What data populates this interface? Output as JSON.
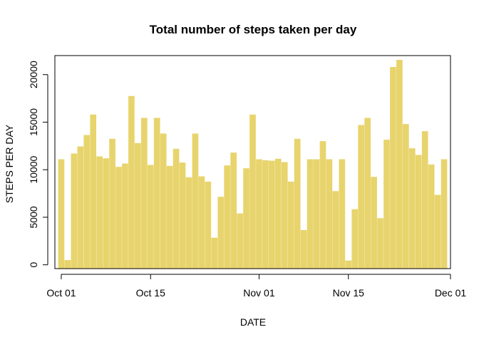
{
  "chart_data": {
    "type": "bar",
    "title": "Total number of steps taken per day",
    "xlabel": "DATE",
    "ylabel": "STEPS PER DAY",
    "bar_color": "#E8D46D",
    "ylim": [
      -400,
      22000
    ],
    "xlim": [
      "2012-09-30",
      "2012-12-01"
    ],
    "x_ticks": [
      {
        "date": "2012-10-01",
        "label": "Oct 01"
      },
      {
        "date": "2012-10-15",
        "label": "Oct 15"
      },
      {
        "date": "2012-11-01",
        "label": "Nov 01"
      },
      {
        "date": "2012-11-15",
        "label": "Nov 15"
      },
      {
        "date": "2012-12-01",
        "label": "Dec 01"
      }
    ],
    "y_ticks": [
      0,
      5000,
      10000,
      15000,
      20000
    ],
    "x": [
      "2012-10-01",
      "2012-10-02",
      "2012-10-03",
      "2012-10-04",
      "2012-10-05",
      "2012-10-06",
      "2012-10-07",
      "2012-10-08",
      "2012-10-09",
      "2012-10-10",
      "2012-10-11",
      "2012-10-12",
      "2012-10-13",
      "2012-10-14",
      "2012-10-15",
      "2012-10-16",
      "2012-10-17",
      "2012-10-18",
      "2012-10-19",
      "2012-10-20",
      "2012-10-21",
      "2012-10-22",
      "2012-10-23",
      "2012-10-24",
      "2012-10-25",
      "2012-10-26",
      "2012-10-27",
      "2012-10-28",
      "2012-10-29",
      "2012-10-30",
      "2012-10-31",
      "2012-11-01",
      "2012-11-02",
      "2012-11-03",
      "2012-11-04",
      "2012-11-05",
      "2012-11-06",
      "2012-11-07",
      "2012-11-08",
      "2012-11-09",
      "2012-11-10",
      "2012-11-11",
      "2012-11-12",
      "2012-11-13",
      "2012-11-14",
      "2012-11-15",
      "2012-11-16",
      "2012-11-17",
      "2012-11-18",
      "2012-11-19",
      "2012-11-20",
      "2012-11-21",
      "2012-11-22",
      "2012-11-23",
      "2012-11-24",
      "2012-11-25",
      "2012-11-26",
      "2012-11-27",
      "2012-11-28",
      "2012-11-29",
      "2012-11-30"
    ],
    "values": [
      11100,
      500,
      11700,
      12450,
      13650,
      15800,
      11400,
      11200,
      13250,
      10300,
      10650,
      17750,
      12800,
      15450,
      10500,
      15450,
      13800,
      10400,
      12200,
      10750,
      9200,
      13800,
      9300,
      8750,
      2850,
      7150,
      10450,
      11800,
      5400,
      10150,
      15800,
      11100,
      11000,
      10950,
      11150,
      10800,
      8750,
      13250,
      3650,
      11100,
      11100,
      13000,
      11100,
      7750,
      11100,
      450,
      5850,
      14700,
      15450,
      9250,
      4900,
      13150,
      20800,
      21550,
      14800,
      12250,
      11550,
      14050,
      10550,
      7350,
      11100
    ]
  }
}
